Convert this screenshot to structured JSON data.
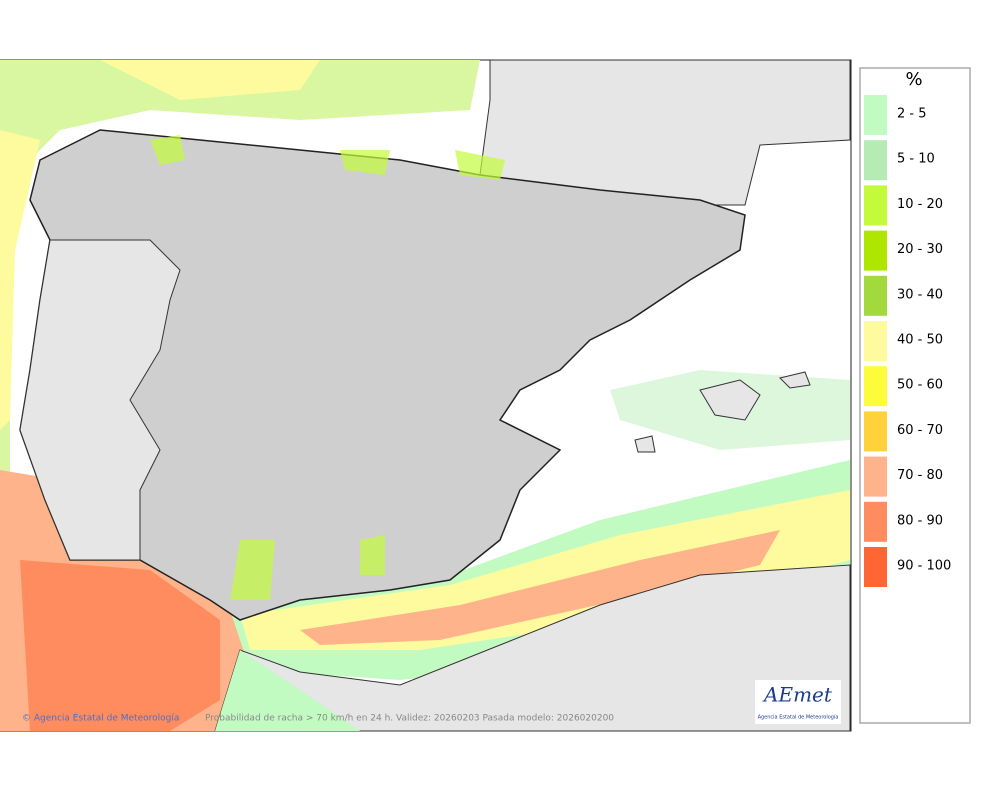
{
  "legend": {
    "unit": "%",
    "items": [
      {
        "label": "2 - 5",
        "color": "#c2fbc2"
      },
      {
        "label": "5 - 10",
        "color": "#b4ecb4"
      },
      {
        "label": "10 - 20",
        "color": "#c3fb3a"
      },
      {
        "label": "20 - 30",
        "color": "#aee600"
      },
      {
        "label": "30 - 40",
        "color": "#a2d93c"
      },
      {
        "label": "40 - 50",
        "color": "#fefb9e"
      },
      {
        "label": "50 - 60",
        "color": "#fdfc3b"
      },
      {
        "label": "60 - 70",
        "color": "#ffd23c"
      },
      {
        "label": "70 - 80",
        "color": "#ffb38a"
      },
      {
        "label": "80 - 90",
        "color": "#ff8c5f"
      },
      {
        "label": "90 - 100",
        "color": "#ff6633"
      }
    ]
  },
  "footer": {
    "credit": "© Agencia Estatal de Meteorología",
    "caption": "Probabilidad de racha > 70 km/h en 24 h. Validez: 20260203 Pasada modelo: 2026020200"
  },
  "logo": {
    "name": "AEmet",
    "subtitle": "Agencia Estatal de Meteorología"
  }
}
